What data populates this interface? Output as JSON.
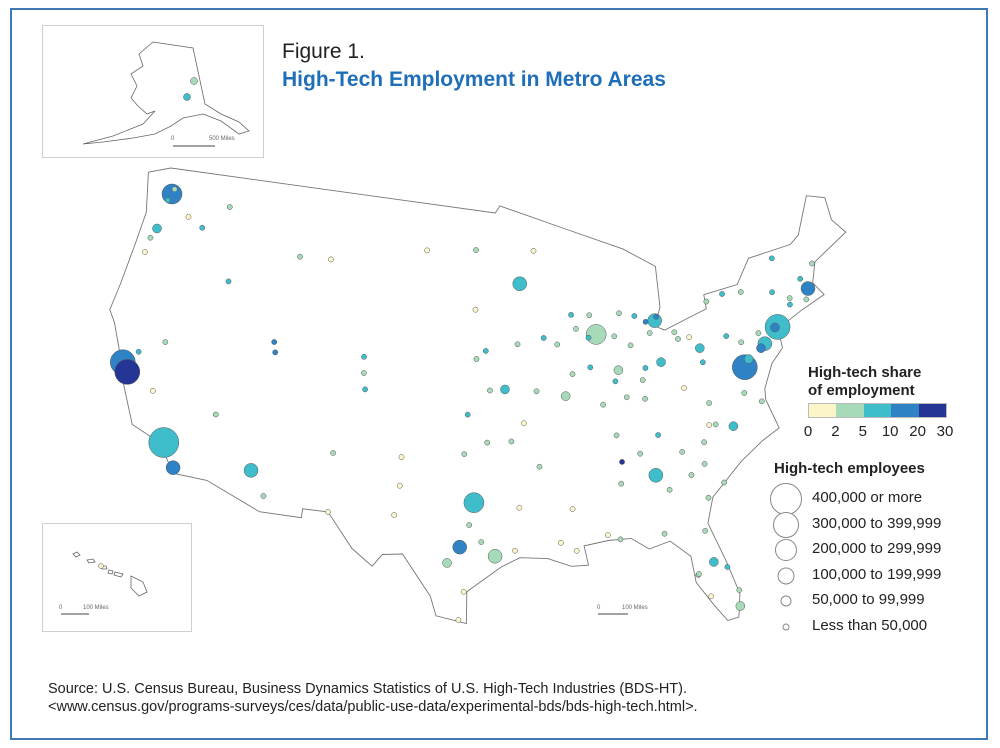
{
  "figure_label": "Figure 1.",
  "title": "High-Tech Employment in Metro Areas",
  "legend_share": {
    "title_line1": "High-tech share",
    "title_line2": "of employment",
    "ticks": [
      "0",
      "2",
      "5",
      "10",
      "20",
      "30"
    ],
    "colors": [
      "#fcf5c7",
      "#a6dab9",
      "#3fbdca",
      "#2f82c3",
      "#253595"
    ]
  },
  "legend_size": {
    "title": "High-tech employees",
    "items": [
      "400,000 or more",
      "300,000 to 399,999",
      "200,000 to 299,999",
      "100,000 to 199,999",
      "50,000 to 99,999",
      "Less than 50,000"
    ]
  },
  "insets": {
    "alaska_scale": {
      "zero": "0",
      "label": "500 Miles"
    },
    "hawaii_scale": {
      "zero": "0",
      "label": "100 Miles"
    }
  },
  "main_scale": {
    "zero": "0",
    "label": "100 Miles"
  },
  "source": {
    "line1": "Source: U.S. Census Bureau, Business Dynamics Statistics of U.S. High-Tech Industries (BDS-HT).",
    "line2": "<www.census.gov/programs-surveys/ces/data/public-use-data/experimental-bds/bds-high-tech.html>."
  },
  "metros_note": "each metro: [longitude, latitude, size_class 0-5 (0 = <50k ... 5 = 400k+), share_class 0-4 (0-2,2-5,5-10,10-20,20-30 %)]",
  "metros": [
    [
      -122.4,
      37.8,
      4,
      3
    ],
    [
      -121.9,
      37.35,
      4,
      4
    ],
    [
      -118.2,
      34.05,
      5,
      2
    ],
    [
      -117.2,
      32.8,
      2,
      3
    ],
    [
      -122.3,
      47.6,
      3,
      3
    ],
    [
      -122.7,
      45.5,
      1,
      2
    ],
    [
      -112.0,
      33.5,
      2,
      2
    ],
    [
      -105.0,
      39.7,
      0,
      1
    ],
    [
      -104.8,
      38.8,
      0,
      2
    ],
    [
      -105.1,
      40.6,
      0,
      2
    ],
    [
      -111.9,
      40.76,
      0,
      3
    ],
    [
      -111.7,
      40.2,
      0,
      3
    ],
    [
      -96.8,
      32.8,
      3,
      2
    ],
    [
      -95.4,
      29.8,
      2,
      1
    ],
    [
      -97.7,
      30.3,
      2,
      3
    ],
    [
      -98.5,
      29.4,
      1,
      1
    ],
    [
      -87.6,
      41.9,
      3,
      1
    ],
    [
      -93.3,
      44.98,
      2,
      2
    ],
    [
      -83.05,
      42.3,
      2,
      2
    ],
    [
      -84.4,
      33.75,
      2,
      2
    ],
    [
      -77.0,
      38.9,
      4,
      3
    ],
    [
      -76.6,
      39.3,
      1,
      2
    ],
    [
      -75.2,
      39.95,
      2,
      2
    ],
    [
      -74.0,
      40.7,
      4,
      2
    ],
    [
      -71.06,
      42.36,
      2,
      3
    ],
    [
      -78.6,
      35.8,
      1,
      2
    ],
    [
      -80.8,
      35.2,
      0,
      1
    ],
    [
      -83.0,
      39.96,
      1,
      2
    ],
    [
      -86.2,
      39.8,
      1,
      1
    ],
    [
      -81.4,
      28.5,
      1,
      2
    ],
    [
      -80.2,
      25.8,
      1,
      1
    ],
    [
      -82.5,
      27.9,
      0,
      1
    ],
    [
      -94.6,
      39.1,
      1,
      2
    ],
    [
      -90.2,
      38.6,
      1,
      1
    ],
    [
      -86.8,
      36.2,
      0,
      1
    ],
    [
      -84.5,
      39.1,
      0,
      1
    ],
    [
      -81.7,
      41.5,
      0,
      1
    ],
    [
      -80.0,
      40.4,
      1,
      2
    ],
    [
      -88.0,
      43.0,
      0,
      1
    ],
    [
      -89.4,
      43.1,
      0,
      2
    ],
    [
      -97.5,
      35.5,
      0,
      1
    ],
    [
      -95.9,
      36.15,
      0,
      1
    ],
    [
      -106.6,
      35.1,
      0,
      1
    ],
    [
      -106.5,
      31.8,
      0,
      0
    ],
    [
      -110.9,
      32.2,
      0,
      1
    ],
    [
      -115.1,
      36.2,
      0,
      1
    ],
    [
      -119.8,
      39.5,
      0,
      1
    ],
    [
      -121.5,
      38.6,
      0,
      2
    ],
    [
      -119.8,
      36.7,
      0,
      0
    ],
    [
      -117.4,
      47.7,
      0,
      1
    ],
    [
      -116.2,
      43.6,
      0,
      2
    ],
    [
      -123.0,
      44.9,
      0,
      1
    ],
    [
      -123.1,
      44.05,
      0,
      0
    ],
    [
      -122.2,
      47.9,
      0,
      1
    ],
    [
      -122.5,
      47.2,
      0,
      2
    ],
    [
      -120.5,
      46.6,
      0,
      0
    ],
    [
      -119.2,
      46.2,
      0,
      2
    ],
    [
      -108.5,
      45.8,
      0,
      0
    ],
    [
      -111.0,
      45.7,
      0,
      1
    ],
    [
      -96.7,
      40.8,
      0,
      1
    ],
    [
      -96.0,
      41.25,
      0,
      2
    ],
    [
      -93.6,
      41.6,
      0,
      1
    ],
    [
      -91.6,
      41.9,
      0,
      2
    ],
    [
      -92.1,
      46.8,
      0,
      0
    ],
    [
      -96.8,
      43.55,
      0,
      0
    ],
    [
      -100.8,
      46.8,
      0,
      0
    ],
    [
      -96.8,
      46.9,
      0,
      1
    ],
    [
      -97.3,
      37.7,
      0,
      2
    ],
    [
      -95.7,
      39.05,
      0,
      1
    ],
    [
      -92.3,
      34.75,
      0,
      1
    ],
    [
      -94.2,
      36.2,
      0,
      1
    ],
    [
      -90.1,
      29.95,
      0,
      0
    ],
    [
      -91.1,
      30.45,
      0,
      0
    ],
    [
      -90.2,
      32.3,
      0,
      0
    ],
    [
      -86.8,
      33.5,
      0,
      1
    ],
    [
      -86.6,
      34.7,
      0,
      4
    ],
    [
      -85.3,
      35.05,
      0,
      1
    ],
    [
      -83.9,
      35.96,
      0,
      2
    ],
    [
      -85.8,
      38.25,
      0,
      1
    ],
    [
      -84.5,
      38.05,
      0,
      1
    ],
    [
      -81.0,
      34.0,
      0,
      1
    ],
    [
      -79.9,
      32.8,
      0,
      1
    ],
    [
      -82.4,
      34.85,
      0,
      1
    ],
    [
      -80.25,
      36.1,
      0,
      0
    ],
    [
      -79.8,
      36.07,
      0,
      1
    ],
    [
      -77.4,
      37.5,
      0,
      1
    ],
    [
      -76.3,
      36.85,
      0,
      1
    ],
    [
      -80.0,
      37.3,
      0,
      1
    ],
    [
      -81.6,
      38.35,
      0,
      0
    ],
    [
      -79.95,
      39.6,
      0,
      2
    ],
    [
      -77.9,
      40.8,
      0,
      2
    ],
    [
      -76.9,
      40.3,
      0,
      1
    ],
    [
      -75.5,
      40.6,
      0,
      1
    ],
    [
      -76.15,
      43.05,
      0,
      1
    ],
    [
      -77.6,
      43.15,
      0,
      2
    ],
    [
      -78.9,
      42.9,
      0,
      1
    ],
    [
      -73.8,
      42.65,
      0,
      2
    ],
    [
      -73.2,
      44.5,
      0,
      2
    ],
    [
      -72.7,
      41.75,
      0,
      2
    ],
    [
      -71.4,
      41.8,
      0,
      1
    ],
    [
      -70.25,
      43.65,
      0,
      1
    ],
    [
      -71.45,
      43.0,
      0,
      2
    ],
    [
      -72.6,
      42.1,
      0,
      1
    ],
    [
      -74.2,
      40.7,
      1,
      3
    ],
    [
      -75.55,
      39.75,
      1,
      3
    ],
    [
      -82.45,
      27.95,
      0,
      1
    ],
    [
      -81.65,
      30.3,
      0,
      1
    ],
    [
      -84.3,
      30.45,
      0,
      1
    ],
    [
      -87.2,
      30.4,
      0,
      1
    ],
    [
      -80.1,
      26.7,
      0,
      1
    ],
    [
      -81.9,
      26.6,
      0,
      0
    ],
    [
      -80.6,
      28.1,
      0,
      2
    ],
    [
      -88.0,
      30.7,
      0,
      0
    ],
    [
      -93.75,
      32.5,
      0,
      0
    ],
    [
      -97.4,
      27.8,
      0,
      0
    ],
    [
      -97.7,
      26.2,
      0,
      0
    ],
    [
      -101.85,
      33.6,
      0,
      0
    ],
    [
      -101.85,
      35.2,
      0,
      0
    ],
    [
      -102.1,
      31.95,
      0,
      0
    ],
    [
      -97.1,
      31.55,
      0,
      1
    ],
    [
      -96.3,
      30.6,
      0,
      1
    ],
    [
      -94.1,
      30.1,
      0,
      0
    ],
    [
      -83.6,
      32.85,
      0,
      1
    ],
    [
      -81.1,
      32.1,
      0,
      1
    ],
    [
      -82.0,
      33.5,
      0,
      1
    ],
    [
      -85.7,
      42.95,
      0,
      1
    ],
    [
      -84.55,
      42.7,
      0,
      2
    ],
    [
      -83.75,
      42.3,
      0,
      3
    ],
    [
      -85.1,
      41.1,
      0,
      1
    ],
    [
      -86.25,
      41.7,
      0,
      1
    ],
    [
      -88.2,
      41.75,
      0,
      2
    ],
    [
      -89.6,
      39.8,
      0,
      1
    ],
    [
      -88.25,
      40.1,
      0,
      2
    ],
    [
      -89.1,
      42.3,
      0,
      1
    ],
    [
      -90.6,
      41.5,
      0,
      1
    ],
    [
      -92.3,
      38.95,
      0,
      1
    ],
    [
      -93.3,
      37.2,
      0,
      0
    ],
    [
      -87.55,
      37.97,
      0,
      1
    ],
    [
      -86.5,
      39.2,
      0,
      2
    ],
    [
      -84.2,
      39.75,
      0,
      2
    ],
    [
      -83.55,
      41.65,
      0,
      1
    ],
    [
      -81.5,
      41.1,
      0,
      1
    ],
    [
      -80.65,
      41.1,
      0,
      0
    ],
    [
      -82.9,
      42.5,
      0,
      3
    ]
  ]
}
